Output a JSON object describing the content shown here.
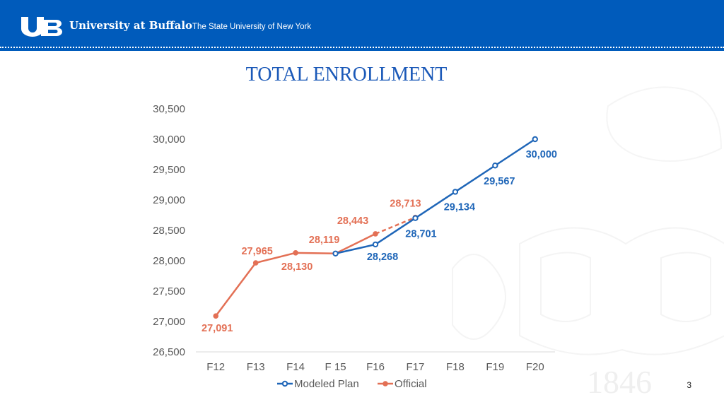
{
  "header": {
    "brand": "University at Buffalo",
    "subtitle": "The State University of New York"
  },
  "colors": {
    "header_bg": "#005bbb",
    "modeled": "#1f66b8",
    "official": "#e37055"
  },
  "page_number": "3",
  "watermark": {
    "year": "1846"
  },
  "chart_data": {
    "type": "line",
    "title": "TOTAL ENROLLMENT",
    "categories": [
      "F12",
      "F13",
      "F14",
      "F 15",
      "F16",
      "F17",
      "F18",
      "F19",
      "F20"
    ],
    "ylim": [
      26500,
      30500
    ],
    "yticks": [
      26500,
      27000,
      27500,
      28000,
      28500,
      29000,
      29500,
      30000,
      30500
    ],
    "ytick_labels": [
      "26,500",
      "27,000",
      "27,500",
      "28,000",
      "28,500",
      "29,000",
      "29,500",
      "30,000",
      "30,500"
    ],
    "legend_position": "bottom",
    "series": [
      {
        "name": "Modeled Plan",
        "color": "#1f66b8",
        "values": [
          null,
          null,
          null,
          28119,
          28268,
          28701,
          29134,
          29567,
          30000
        ],
        "labels": [
          null,
          null,
          null,
          null,
          "28,268",
          "28,701",
          "29,134",
          "29,567",
          "30,000"
        ]
      },
      {
        "name": "Official",
        "color": "#e37055",
        "values": [
          27091,
          27965,
          28130,
          28119,
          28443,
          28713,
          null,
          null,
          null
        ],
        "labels": [
          "27,091",
          "27,965",
          "28,130",
          "28,119",
          "28,443",
          "28,713",
          null,
          null,
          null
        ],
        "dashed_from_index": 4
      }
    ]
  }
}
